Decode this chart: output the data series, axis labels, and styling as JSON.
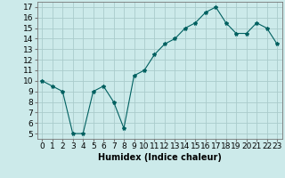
{
  "x": [
    0,
    1,
    2,
    3,
    4,
    5,
    6,
    7,
    8,
    9,
    10,
    11,
    12,
    13,
    14,
    15,
    16,
    17,
    18,
    19,
    20,
    21,
    22,
    23
  ],
  "y": [
    10,
    9.5,
    9,
    5,
    5,
    9,
    9.5,
    8,
    5.5,
    10.5,
    11,
    12.5,
    13.5,
    14,
    15,
    15.5,
    16.5,
    17,
    15.5,
    14.5,
    14.5,
    15.5,
    15,
    13.5
  ],
  "line_color": "#006060",
  "marker": "*",
  "marker_size": 3,
  "bg_color": "#cceaea",
  "grid_color": "#aacccc",
  "xlabel": "Humidex (Indice chaleur)",
  "xlim": [
    -0.5,
    23.5
  ],
  "ylim": [
    4.5,
    17.5
  ],
  "yticks": [
    5,
    6,
    7,
    8,
    9,
    10,
    11,
    12,
    13,
    14,
    15,
    16,
    17
  ],
  "xticks": [
    0,
    1,
    2,
    3,
    4,
    5,
    6,
    7,
    8,
    9,
    10,
    11,
    12,
    13,
    14,
    15,
    16,
    17,
    18,
    19,
    20,
    21,
    22,
    23
  ],
  "label_fontsize": 7,
  "tick_fontsize": 6.5
}
